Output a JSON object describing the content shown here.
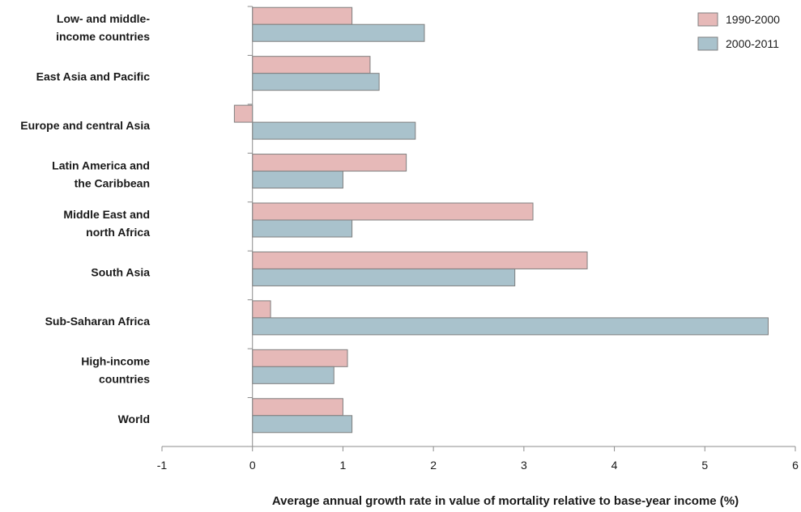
{
  "chart_data": {
    "type": "bar",
    "orientation": "horizontal",
    "categories": [
      [
        "Low- and middle-",
        "income countries"
      ],
      [
        "East Asia and Pacific"
      ],
      [
        "Europe and central Asia"
      ],
      [
        "Latin America and",
        "the Caribbean"
      ],
      [
        "Middle East and",
        "north Africa"
      ],
      [
        "South Asia"
      ],
      [
        "Sub-Saharan Africa"
      ],
      [
        "High-income",
        "countries"
      ],
      [
        "World"
      ]
    ],
    "series": [
      {
        "name": "1990-2000",
        "color": "#e6b9b8",
        "values": [
          1.1,
          1.3,
          -0.2,
          1.7,
          3.1,
          3.7,
          0.2,
          1.05,
          1.0
        ]
      },
      {
        "name": "2000-2011",
        "color": "#a9c2cc",
        "values": [
          1.9,
          1.4,
          1.8,
          1.0,
          1.1,
          2.9,
          5.7,
          0.9,
          1.1
        ]
      }
    ],
    "xlim": [
      -1,
      6
    ],
    "xticks": [
      "-1",
      "0",
      "1",
      "2",
      "3",
      "4",
      "5",
      "6"
    ],
    "xlabel": "Average annual growth rate in value of mortality relative to base-year income (%)",
    "ylabel": "",
    "title": "",
    "grid": false,
    "legend_position": "top-right",
    "bar_edge_color": "#7f7f7f"
  }
}
